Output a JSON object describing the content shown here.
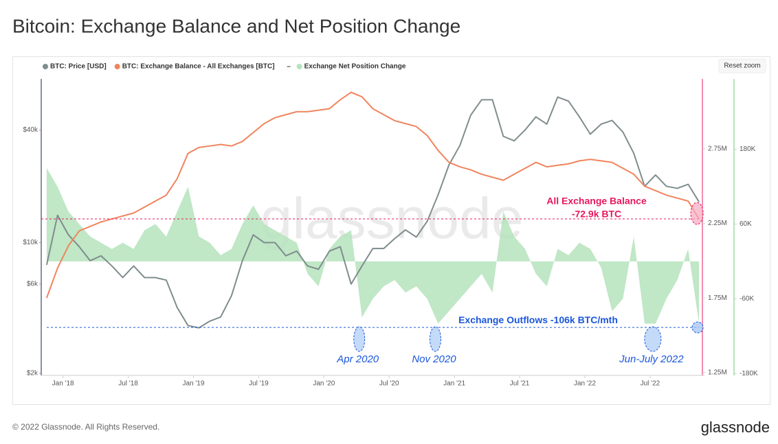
{
  "chart_data": {
    "type": "line",
    "title": "Bitcoin: Exchange Balance and Net Position Change",
    "x": [
      "2017-11",
      "2017-12",
      "2018-01",
      "2018-02",
      "2018-03",
      "2018-04",
      "2018-05",
      "2018-06",
      "2018-07",
      "2018-08",
      "2018-09",
      "2018-10",
      "2018-11",
      "2018-12",
      "2019-01",
      "2019-02",
      "2019-03",
      "2019-04",
      "2019-05",
      "2019-06",
      "2019-07",
      "2019-08",
      "2019-09",
      "2019-10",
      "2019-11",
      "2019-12",
      "2020-01",
      "2020-02",
      "2020-03",
      "2020-04",
      "2020-05",
      "2020-06",
      "2020-07",
      "2020-08",
      "2020-09",
      "2020-10",
      "2020-11",
      "2020-12",
      "2021-01",
      "2021-02",
      "2021-03",
      "2021-04",
      "2021-05",
      "2021-06",
      "2021-07",
      "2021-08",
      "2021-09",
      "2021-10",
      "2021-11",
      "2021-12",
      "2022-01",
      "2022-02",
      "2022-03",
      "2022-04",
      "2022-05",
      "2022-06",
      "2022-07",
      "2022-08",
      "2022-09",
      "2022-10",
      "2022-11"
    ],
    "xlim": [
      "2017-11",
      "2022-12"
    ],
    "xticks": [
      {
        "value": "2018-01",
        "label": "Jan '18"
      },
      {
        "value": "2018-07",
        "label": "Jul '18"
      },
      {
        "value": "2019-01",
        "label": "Jan '19"
      },
      {
        "value": "2019-07",
        "label": "Jul '19"
      },
      {
        "value": "2020-01",
        "label": "Jan '20"
      },
      {
        "value": "2020-07",
        "label": "Jul '20"
      },
      {
        "value": "2021-01",
        "label": "Jan '21"
      },
      {
        "value": "2021-07",
        "label": "Jul '21"
      },
      {
        "value": "2022-01",
        "label": "Jan '22"
      },
      {
        "value": "2022-07",
        "label": "Jul '22"
      }
    ],
    "ylog": true,
    "ylim": [
      1950,
      75000
    ],
    "yticks": [
      {
        "value": 2000,
        "label": "$2k"
      },
      {
        "value": 6000,
        "label": "$6k"
      },
      {
        "value": 10000,
        "label": "$10k"
      },
      {
        "value": 40000,
        "label": "$40k"
      }
    ],
    "y2lim": [
      1230000,
      3220000
    ],
    "y2ticks": [
      {
        "value": 1250000,
        "label": "1.25M"
      },
      {
        "value": 1750000,
        "label": "1.75M"
      },
      {
        "value": 2250000,
        "label": "2.25M"
      },
      {
        "value": 2750000,
        "label": "2.75M"
      }
    ],
    "y3lim": [
      -183000,
      293000
    ],
    "y3ticks": [
      {
        "value": -180000,
        "label": "-180K"
      },
      {
        "value": -60000,
        "label": "-60K"
      },
      {
        "value": 60000,
        "label": "60K"
      },
      {
        "value": 180000,
        "label": "180K"
      }
    ],
    "legend": "top-left",
    "series": [
      {
        "name": "Exchange Net Position Change",
        "type": "area",
        "axis": "y3",
        "color": "#b5e3bc",
        "values": [
          150000,
          120000,
          80000,
          60000,
          40000,
          30000,
          20000,
          30000,
          20000,
          50000,
          60000,
          40000,
          80000,
          120000,
          40000,
          30000,
          10000,
          20000,
          60000,
          90000,
          60000,
          50000,
          40000,
          30000,
          -20000,
          -40000,
          20000,
          40000,
          50000,
          -90000,
          -60000,
          -40000,
          -30000,
          -50000,
          -40000,
          -60000,
          -100000,
          -80000,
          -60000,
          -40000,
          -20000,
          -50000,
          80000,
          40000,
          20000,
          -20000,
          -40000,
          20000,
          10000,
          30000,
          20000,
          -10000,
          -80000,
          -60000,
          40000,
          -100000,
          -100000,
          -60000,
          -30000,
          20000,
          -100000
        ]
      },
      {
        "name": "BTC: Price [USD]",
        "type": "line",
        "axis": "y",
        "color": "#7f8c8d",
        "values": [
          7600,
          14000,
          11000,
          9500,
          8000,
          8500,
          7500,
          6500,
          7500,
          6500,
          6500,
          6300,
          4500,
          3600,
          3500,
          3800,
          4000,
          5200,
          8000,
          11000,
          10000,
          10000,
          8500,
          9000,
          7500,
          7200,
          9000,
          9500,
          6000,
          7500,
          9300,
          9300,
          10500,
          11700,
          10700,
          13000,
          18000,
          26000,
          33000,
          48000,
          58000,
          58000,
          37000,
          35000,
          40000,
          47000,
          43000,
          60000,
          57000,
          47000,
          38000,
          43000,
          45000,
          39000,
          30000,
          20000,
          23000,
          20000,
          19500,
          20500,
          16500
        ]
      },
      {
        "name": "BTC: Exchange Balance - All Exchanges [BTC]",
        "type": "line",
        "axis": "y2",
        "color": "#f0845d",
        "values": [
          1750000,
          1950000,
          2100000,
          2200000,
          2230000,
          2260000,
          2280000,
          2300000,
          2320000,
          2360000,
          2400000,
          2440000,
          2550000,
          2720000,
          2760000,
          2770000,
          2780000,
          2770000,
          2800000,
          2860000,
          2920000,
          2960000,
          2980000,
          3000000,
          3000000,
          3010000,
          3020000,
          3080000,
          3130000,
          3100000,
          3020000,
          2980000,
          2940000,
          2920000,
          2900000,
          2840000,
          2740000,
          2660000,
          2630000,
          2610000,
          2580000,
          2560000,
          2540000,
          2580000,
          2620000,
          2660000,
          2630000,
          2640000,
          2650000,
          2670000,
          2680000,
          2670000,
          2660000,
          2620000,
          2580000,
          2500000,
          2470000,
          2440000,
          2420000,
          2400000,
          2280000
        ]
      }
    ],
    "annotations": {
      "balance_title": "All Exchange Balance",
      "balance_change": "-72.9k BTC",
      "outflows": {
        "text": "Exchange Outflows -106k BTC/mth",
        "value": -106000
      },
      "events": [
        {
          "text": "Apr 2020",
          "x": "2020-04"
        },
        {
          "text": "Nov 2020",
          "x": "2020-11"
        },
        {
          "text": "Jun-July 2022",
          "x": "2022-07"
        }
      ]
    }
  },
  "ui": {
    "reset_zoom": "Reset zoom",
    "watermark": "glassnode"
  },
  "footer": {
    "copyright": "© 2022 Glassnode. All Rights Reserved.",
    "brand": "glassnode"
  }
}
